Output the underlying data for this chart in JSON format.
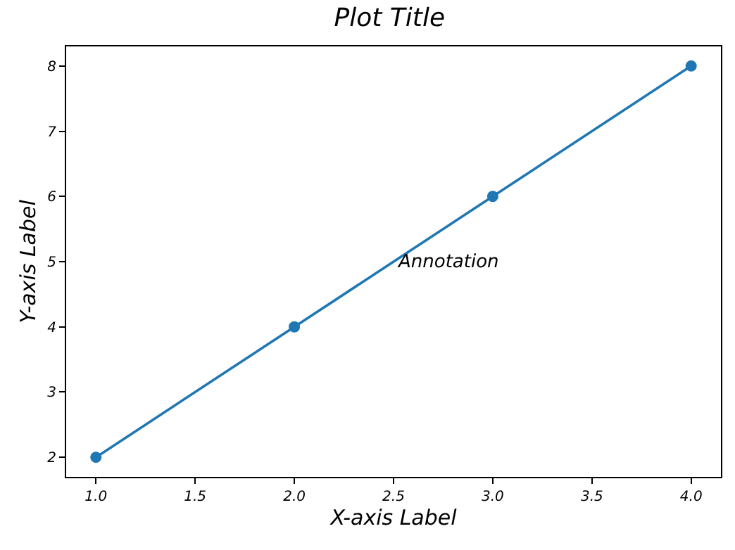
{
  "chart_data": {
    "type": "line",
    "title": "Plot Title",
    "xlabel": "X-axis Label",
    "ylabel": "Y-axis Label",
    "x": [
      1,
      2,
      3,
      4
    ],
    "series": [
      {
        "color": "#1f77b4",
        "values": [
          2,
          4,
          6,
          8
        ]
      }
    ],
    "marker": "circle",
    "line_style": "solid",
    "xlim": [
      0.85,
      4.15
    ],
    "xticks": [
      {
        "value": 1,
        "label": "1.0"
      },
      {
        "value": 1.5,
        "label": "1.5"
      },
      {
        "value": 2,
        "label": "2.0"
      },
      {
        "value": 2.5,
        "label": "2.5"
      },
      {
        "value": 3,
        "label": "3.0"
      },
      {
        "value": 3.5,
        "label": "3.5"
      },
      {
        "value": 4,
        "label": "4.0"
      }
    ],
    "ylim": [
      1.7,
      8.3
    ],
    "yticks": [
      2,
      3,
      4,
      5,
      6,
      7,
      8
    ],
    "annotations": [
      {
        "text": "Annotation",
        "x": 2.5,
        "y": 5
      }
    ]
  }
}
